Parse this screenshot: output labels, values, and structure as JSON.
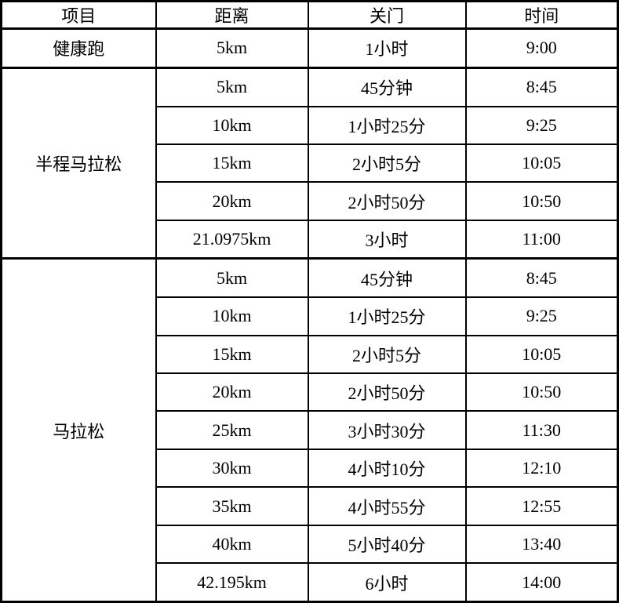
{
  "colors": {
    "background": "#ffffff",
    "border": "#000000",
    "text": "#000000"
  },
  "table": {
    "header": [
      "项目",
      "距离",
      "关门",
      "时间"
    ],
    "sections": [
      {
        "name": "健康跑",
        "rows": [
          [
            "5km",
            "1小时",
            "9:00"
          ]
        ]
      },
      {
        "name": "半程马拉松",
        "rows": [
          [
            "5km",
            "45分钟",
            "8:45"
          ],
          [
            "10km",
            "1小时25分",
            "9:25"
          ],
          [
            "15km",
            "2小时5分",
            "10:05"
          ],
          [
            "20km",
            "2小时50分",
            "10:50"
          ],
          [
            "21.0975km",
            "3小时",
            "11:00"
          ]
        ]
      },
      {
        "name": "马拉松",
        "rows": [
          [
            "5km",
            "45分钟",
            "8:45"
          ],
          [
            "10km",
            "1小时25分",
            "9:25"
          ],
          [
            "15km",
            "2小时5分",
            "10:05"
          ],
          [
            "20km",
            "2小时50分",
            "10:50"
          ],
          [
            "25km",
            "3小时30分",
            "11:30"
          ],
          [
            "30km",
            "4小时10分",
            "12:10"
          ],
          [
            "35km",
            "4小时55分",
            "12:55"
          ],
          [
            "40km",
            "5小时40分",
            "13:40"
          ],
          [
            "42.195km",
            "6小时",
            "14:00"
          ]
        ]
      }
    ]
  }
}
